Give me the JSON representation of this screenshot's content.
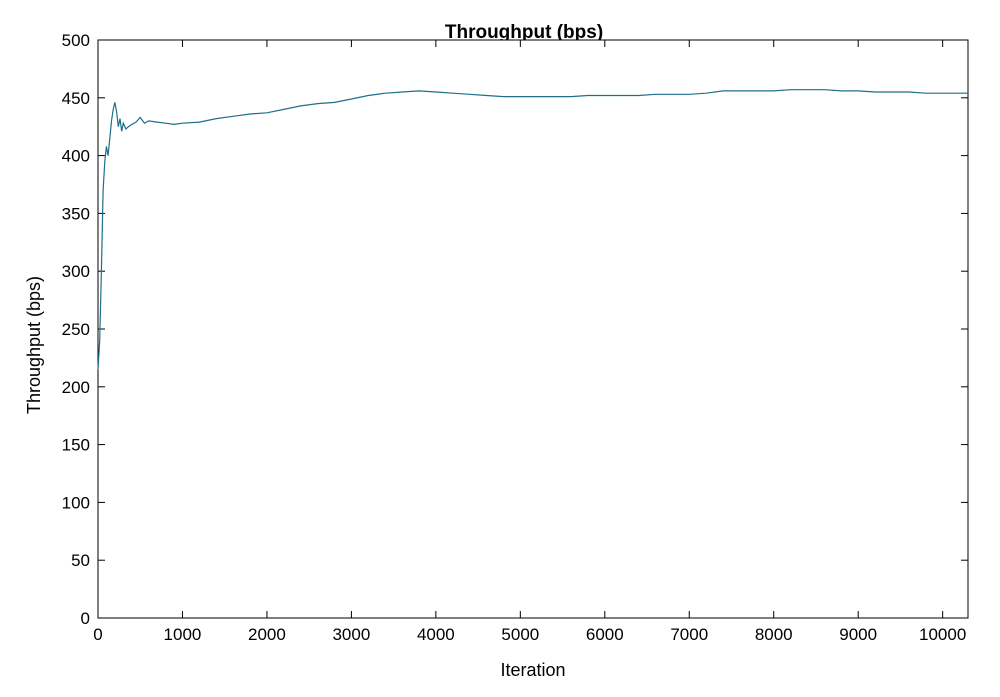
{
  "chart_data": {
    "type": "line",
    "title": "Throughput (bps)",
    "xlabel": "Iteration",
    "ylabel": "Throughput (bps)",
    "xlim": [
      0,
      10300
    ],
    "ylim": [
      0,
      500
    ],
    "xticks": [
      0,
      1000,
      2000,
      3000,
      4000,
      5000,
      6000,
      7000,
      8000,
      9000,
      10000
    ],
    "yticks": [
      0,
      50,
      100,
      150,
      200,
      250,
      300,
      350,
      400,
      450,
      500
    ],
    "grid": false,
    "legend": "none",
    "line_color": "#1f6f8b",
    "series": [
      {
        "x": [
          0,
          20,
          40,
          60,
          80,
          100,
          120,
          140,
          160,
          180,
          200,
          220,
          240,
          260,
          280,
          300,
          330,
          360,
          400,
          450,
          500,
          550,
          600,
          700,
          800,
          900,
          1000,
          1200,
          1400,
          1600,
          1800,
          2000,
          2200,
          2400,
          2600,
          2800,
          3000,
          3200,
          3400,
          3600,
          3800,
          4000,
          4200,
          4400,
          4600,
          4800,
          5000,
          5200,
          5400,
          5600,
          5800,
          6000,
          6200,
          6400,
          6600,
          6800,
          7000,
          7200,
          7400,
          7600,
          7800,
          8000,
          8200,
          8400,
          8600,
          8800,
          9000,
          9200,
          9400,
          9600,
          9800,
          10000,
          10300
        ],
        "y": [
          215,
          240,
          300,
          370,
          395,
          408,
          400,
          415,
          430,
          440,
          446,
          438,
          425,
          432,
          421,
          428,
          423,
          425,
          427,
          429,
          433,
          428,
          430,
          429,
          428,
          427,
          428,
          429,
          432,
          434,
          436,
          437,
          440,
          443,
          445,
          446,
          449,
          452,
          454,
          455,
          456,
          455,
          454,
          453,
          452,
          451,
          451,
          451,
          451,
          451,
          452,
          452,
          452,
          452,
          453,
          453,
          453,
          454,
          456,
          456,
          456,
          456,
          457,
          457,
          457,
          456,
          456,
          455,
          455,
          455,
          454,
          454,
          454
        ]
      }
    ]
  }
}
